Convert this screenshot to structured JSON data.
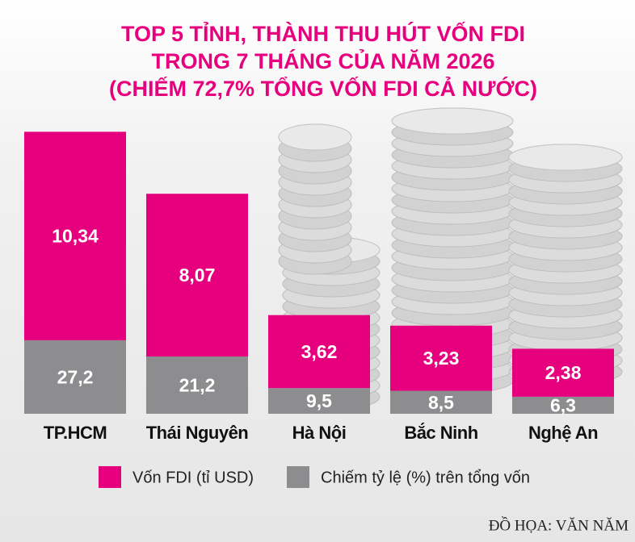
{
  "chart_data": {
    "type": "bar",
    "stacked": true,
    "title": [
      "TOP 5 TỈNH, THÀNH THU HÚT VỐN FDI",
      "TRONG 7 THÁNG CỦA NĂM 2026"
    ],
    "subtitle": "(CHIẾM 72,7% TỔNG VỐN FDI CẢ NƯỚC)",
    "categories": [
      "TP.HCM",
      "Thái Nguyên",
      "Hà Nội",
      "Bắc Ninh",
      "Nghệ An"
    ],
    "series": [
      {
        "name": "Vốn FDI (tỉ USD)",
        "color": "#e6007e",
        "values": [
          10.34,
          8.07,
          3.62,
          3.23,
          2.38
        ],
        "value_labels": [
          "10,34",
          "8,07",
          "3,62",
          "3,23",
          "2,38"
        ]
      },
      {
        "name": "Chiếm tỷ lệ (%) trên tổng vốn",
        "color": "#8d8d90",
        "values": [
          27.2,
          21.2,
          9.5,
          8.5,
          6.3
        ],
        "value_labels": [
          "27,2",
          "21,2",
          "9,5",
          "8,5",
          "6,3"
        ]
      }
    ],
    "credit": "ĐỒ HỌA: VĂN NĂM"
  }
}
